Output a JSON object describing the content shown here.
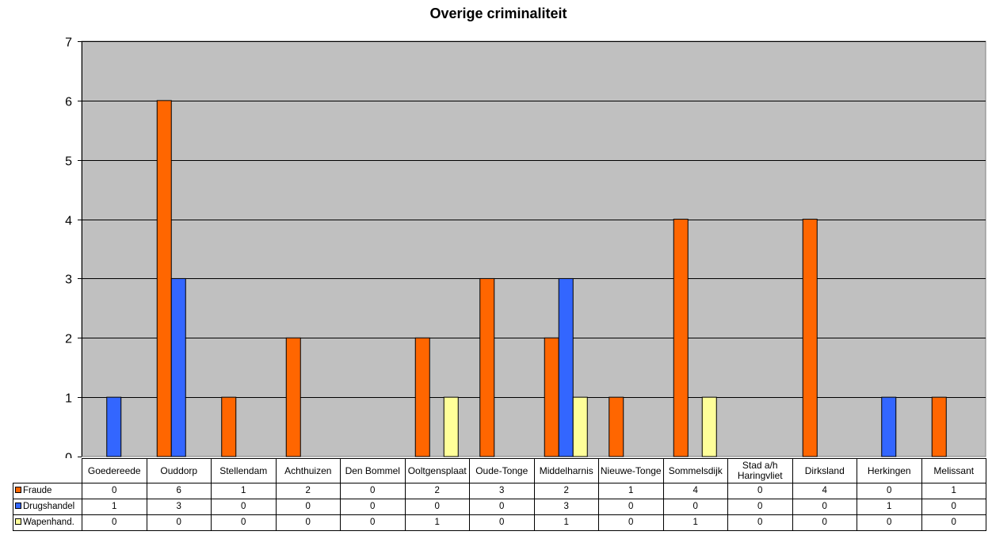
{
  "chart_data": {
    "type": "bar",
    "title": "Overige criminaliteit",
    "xlabel": "",
    "ylabel": "",
    "ylim": [
      0,
      7
    ],
    "yticks": [
      0,
      1,
      2,
      3,
      4,
      5,
      6,
      7
    ],
    "grid": true,
    "legend": "data table below chart",
    "categories": [
      "Goedereede",
      "Ouddorp",
      "Stellendam",
      "Achthuizen",
      "Den Bommel",
      "Ooltgensplaat",
      "Oude-Tonge",
      "Middelharnis",
      "Nieuwe-Tonge",
      "Sommelsdijk",
      "Stad a/h Haringvliet",
      "Dirksland",
      "Herkingen",
      "Melissant"
    ],
    "series": [
      {
        "name": "Fraude",
        "color": "#FF6600",
        "values": [
          0,
          6,
          1,
          2,
          0,
          2,
          3,
          2,
          1,
          4,
          0,
          4,
          0,
          1
        ]
      },
      {
        "name": "Drugshandel",
        "color": "#3366FF",
        "values": [
          1,
          3,
          0,
          0,
          0,
          0,
          0,
          3,
          0,
          0,
          0,
          0,
          1,
          0
        ]
      },
      {
        "name": "Wapenhand.",
        "color": "#FFFF99",
        "values": [
          0,
          0,
          0,
          0,
          0,
          1,
          0,
          1,
          0,
          1,
          0,
          0,
          0,
          0
        ]
      }
    ],
    "plot_background": "#C0C0C0"
  }
}
